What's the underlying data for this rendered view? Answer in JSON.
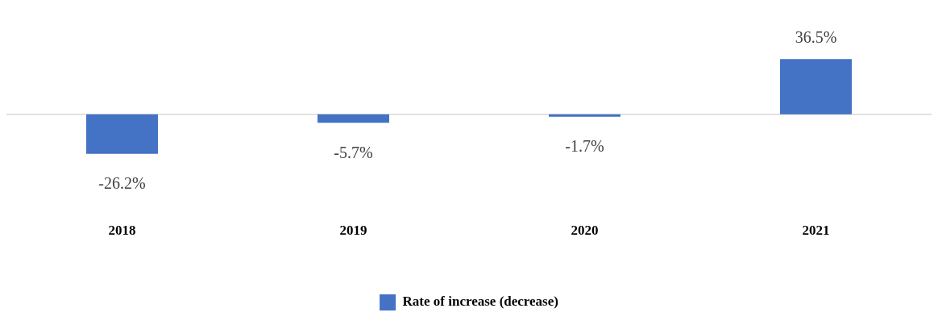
{
  "chart_data": {
    "type": "bar",
    "categories": [
      "2018",
      "2019",
      "2020",
      "2021"
    ],
    "series": [
      {
        "name": "Rate of increase (decrease)",
        "color": "#4472c4",
        "values": [
          -26.2,
          -5.7,
          -1.7,
          36.5
        ],
        "value_labels": [
          "-26.2%",
          "-5.7%",
          "-1.7%",
          "36.5%"
        ]
      }
    ],
    "tick_labels": "x",
    "legend": "bottom"
  }
}
